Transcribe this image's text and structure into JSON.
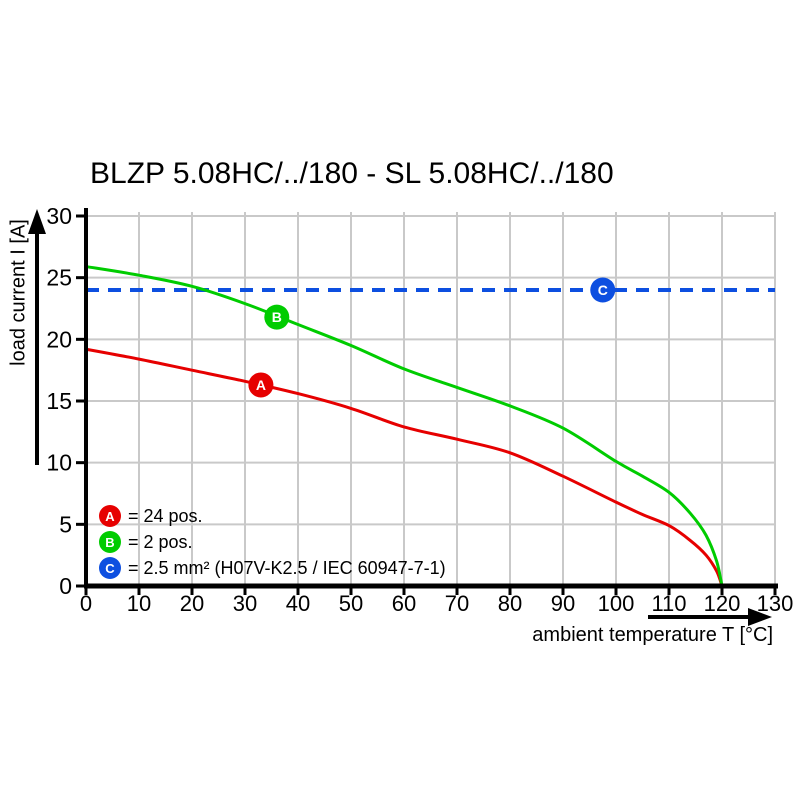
{
  "chart_data": {
    "type": "line",
    "title": "BLZP 5.08HC/../180 - SL 5.08HC/../180",
    "xlabel": "ambient temperature T [°C]",
    "ylabel": "load current I [A]",
    "xlim": [
      0,
      130
    ],
    "ylim": [
      0,
      30
    ],
    "xticks": [
      0,
      10,
      20,
      30,
      40,
      50,
      60,
      70,
      80,
      90,
      100,
      110,
      120,
      130
    ],
    "yticks": [
      0,
      5,
      10,
      15,
      20,
      25,
      30
    ],
    "grid": true,
    "colors": {
      "axis": "#000000",
      "grid": "#c9c9c9",
      "series_a": "#e60000",
      "series_b": "#00cc00",
      "reference": "#0d4fe0"
    },
    "series": [
      {
        "name": "A",
        "legend_label": "= 24 pos.",
        "color": "#e60000",
        "x": [
          0,
          10,
          20,
          30,
          40,
          50,
          60,
          70,
          80,
          90,
          100,
          105,
          110,
          114,
          117,
          119,
          120
        ],
        "y": [
          19.2,
          18.4,
          17.5,
          16.6,
          15.6,
          14.4,
          12.9,
          11.9,
          10.8,
          8.9,
          6.8,
          5.8,
          4.9,
          3.7,
          2.5,
          1.2,
          0
        ],
        "marker": {
          "letter": "A",
          "x": 33,
          "y": 16.3
        }
      },
      {
        "name": "B",
        "legend_label": "= 2 pos.",
        "color": "#00cc00",
        "x": [
          0,
          10,
          20,
          30,
          40,
          50,
          60,
          70,
          80,
          90,
          100,
          105,
          110,
          114,
          117,
          119,
          120
        ],
        "y": [
          25.9,
          25.2,
          24.3,
          22.9,
          21.2,
          19.5,
          17.6,
          16.1,
          14.6,
          12.8,
          10.1,
          8.9,
          7.6,
          5.9,
          4.1,
          2.0,
          0
        ],
        "marker": {
          "letter": "B",
          "x": 36,
          "y": 21.8
        }
      }
    ],
    "reference_line": {
      "name": "C",
      "legend_label": "= 2.5 mm² (H07V-K2.5 / IEC 60947-7-1)",
      "color": "#0d4fe0",
      "y": 24,
      "style": "dashed",
      "marker": {
        "letter": "C",
        "x": 97.5,
        "y": 24
      }
    },
    "legend": [
      {
        "letter": "A",
        "label": "= 24 pos.",
        "color": "#e60000"
      },
      {
        "letter": "B",
        "label": "= 2 pos.",
        "color": "#00cc00"
      },
      {
        "letter": "C",
        "label": "= 2.5 mm² (H07V-K2.5 / IEC 60947-7-1)",
        "color": "#0d4fe0"
      }
    ],
    "legend_position": "lower left"
  }
}
